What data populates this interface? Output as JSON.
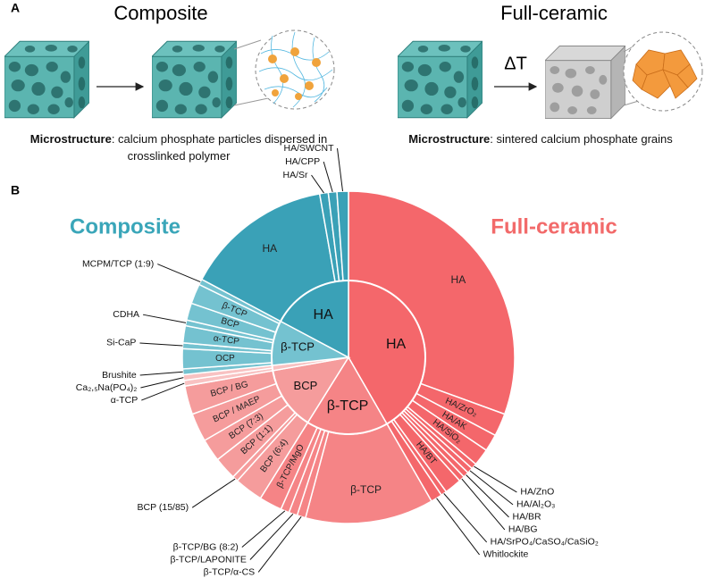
{
  "panel_a": {
    "label": "A",
    "composite": {
      "title": "Composite",
      "micro_label": "Microstructure",
      "micro_text": ": calcium phosphate particles dispersed in crosslinked polymer"
    },
    "full_ceramic": {
      "title": "Full-ceramic",
      "heat": "ΔT",
      "micro_label": "Microstructure",
      "micro_text": ": sintered calcium phosphate grains"
    }
  },
  "panel_b": {
    "label": "B"
  },
  "chart_data": {
    "type": "sunburst",
    "series": [
      {
        "name": "Full-ceramic",
        "color": "#f26a6a",
        "nodes": [
          {
            "name": "HA",
            "color": "#f4676b",
            "children": [
              {
                "name": "HA",
                "value": 110
              },
              {
                "name": "HA/ZrO₂",
                "value": 8
              },
              {
                "name": "HA/AK",
                "value": 6
              },
              {
                "name": "HA/SiO₂",
                "value": 6
              },
              {
                "name": "HA/ZnO",
                "value": 2
              },
              {
                "name": "HA/Al₂O₃",
                "value": 2
              },
              {
                "name": "HA/BR",
                "value": 2
              },
              {
                "name": "HA/BG",
                "value": 2
              },
              {
                "name": "HA/BT",
                "value": 6
              },
              {
                "name": "HA/SrPO₄/CaSO₄/CaSiO₂",
                "value": 2
              },
              {
                "name": "Whitlockite",
                "value": 4
              }
            ]
          },
          {
            "name": "β-TCP",
            "color": "#f58486",
            "children": [
              {
                "name": "β-TCP",
                "value": 45
              },
              {
                "name": "β-TCP/α-CS",
                "value": 3
              },
              {
                "name": "β-TCP/LAPONITE",
                "value": 3
              },
              {
                "name": "β-TCP/BG (8:2)",
                "value": 3
              },
              {
                "name": "β-TCP/MgO",
                "value": 8
              }
            ]
          },
          {
            "name": "BCP",
            "color": "#f59c9c",
            "children": [
              {
                "name": "BCP (6:4)",
                "value": 10
              },
              {
                "name": "BCP (15/85)",
                "value": 2
              },
              {
                "name": "BCP (1:1)",
                "value": 8
              },
              {
                "name": "BCP (7:3)",
                "value": 8
              },
              {
                "name": "BCP / MAEP",
                "value": 10
              },
              {
                "name": "BCP / BG",
                "value": 10
              }
            ]
          },
          {
            "name": null,
            "color": "#f8c2c2",
            "children": [
              {
                "name": "α-TCP",
                "value": 2
              },
              {
                "name": "Ca₂,₅Na(PO₄)₂",
                "value": 2
              }
            ]
          }
        ]
      },
      {
        "name": "Composite",
        "color": "#3aa6b9",
        "nodes": [
          {
            "name": "β-TCP",
            "color": "#74c2d0",
            "children": [
              {
                "name": "Brushite",
                "value": 2
              },
              {
                "name": "OCP",
                "value": 7
              },
              {
                "name": "Si-CaP",
                "value": 2
              },
              {
                "name": "α-TCP",
                "value": 6
              },
              {
                "name": "CDHA",
                "value": 2
              },
              {
                "name": "BCP",
                "value": 6
              },
              {
                "name": "β-TCP",
                "value": 7
              },
              {
                "name": "MCPM/TCP (1:9)",
                "value": 2
              }
            ]
          },
          {
            "name": "HA",
            "color": "#3aa1b7",
            "children": [
              {
                "name": "HA",
                "value": 52
              },
              {
                "name": "HA/Sr",
                "value": 3
              },
              {
                "name": "HA/CPP",
                "value": 3
              },
              {
                "name": "HA/SWCNT",
                "value": 4
              }
            ]
          }
        ]
      }
    ]
  }
}
